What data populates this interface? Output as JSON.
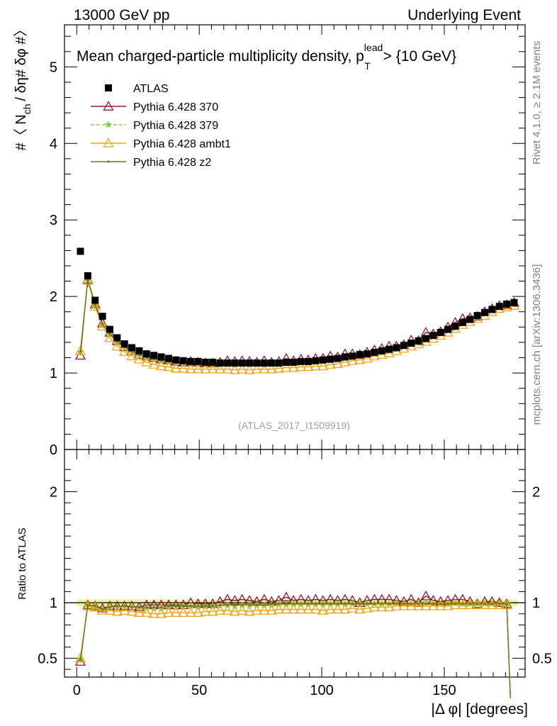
{
  "header": {
    "left": "13000 GeV pp",
    "right": "Underlying Event"
  },
  "side_labels": {
    "rivet": "Rivet 4.1.0, ≥ 2.1M events",
    "mcplots": "mcplots.cern.ch [arXiv:1306.3436]"
  },
  "watermark": "(ATLAS_2017_I1509919)",
  "chart_data": [
    {
      "type": "line",
      "title_main": "Mean charged-particle multiplicity density, p",
      "title_sup": "lead",
      "title_sub": "T",
      "title_tail": " > {10 GeV}",
      "ylabel_part1": "#〈 N",
      "ylabel_sub": "ch",
      "ylabel_part2": "/ δη# δφ #〉",
      "xlabel": "|Δ φ| [degrees]",
      "xlim": [
        -5,
        183
      ],
      "ylim": [
        0,
        5.55
      ],
      "yticks": [
        0,
        1,
        2,
        3,
        4,
        5
      ],
      "ytick_labels": [
        "0",
        "1",
        "2",
        "3",
        "4",
        "5"
      ],
      "xticks": [
        0,
        50,
        100,
        150
      ],
      "xtick_labels": [
        "0",
        "50",
        "100",
        "150"
      ],
      "legend": [
        "ATLAS",
        "Pythia 6.428 370",
        "Pythia 6.428 379",
        "Pythia 6.428 ambt1",
        "Pythia 6.428 z2"
      ],
      "x": [
        1.5,
        4.5,
        7.5,
        10.5,
        13.5,
        16.5,
        19.5,
        22.5,
        25.5,
        28.5,
        31.5,
        34.5,
        37.5,
        40.5,
        43.5,
        46.5,
        49.5,
        52.5,
        55.5,
        58.5,
        61.5,
        64.5,
        67.5,
        70.5,
        73.5,
        76.5,
        79.5,
        82.5,
        85.5,
        88.5,
        91.5,
        94.5,
        97.5,
        100.5,
        103.5,
        106.5,
        109.5,
        112.5,
        115.5,
        118.5,
        121.5,
        124.5,
        127.5,
        130.5,
        133.5,
        136.5,
        139.5,
        142.5,
        145.5,
        148.5,
        151.5,
        154.5,
        157.5,
        160.5,
        163.5,
        166.5,
        169.5,
        172.5,
        175.5,
        178.5
      ],
      "series": [
        {
          "name": "ATLAS",
          "color": "#000000",
          "marker": "square",
          "values": [
            2.59,
            2.27,
            1.95,
            1.74,
            1.57,
            1.46,
            1.38,
            1.33,
            1.29,
            1.25,
            1.23,
            1.21,
            1.19,
            1.17,
            1.16,
            1.15,
            1.15,
            1.14,
            1.14,
            1.13,
            1.13,
            1.13,
            1.13,
            1.13,
            1.13,
            1.13,
            1.13,
            1.13,
            1.14,
            1.14,
            1.15,
            1.15,
            1.16,
            1.17,
            1.18,
            1.19,
            1.21,
            1.22,
            1.24,
            1.25,
            1.27,
            1.29,
            1.31,
            1.33,
            1.36,
            1.39,
            1.42,
            1.45,
            1.49,
            1.53,
            1.57,
            1.61,
            1.66,
            1.7,
            1.75,
            1.79,
            1.83,
            1.87,
            1.9,
            1.92
          ]
        },
        {
          "name": "Pythia 6.428 370",
          "color": "#8b1a2e",
          "marker": "triangle-open",
          "values": [
            1.23,
            2.22,
            1.9,
            1.65,
            1.53,
            1.42,
            1.34,
            1.29,
            1.24,
            1.22,
            1.2,
            1.18,
            1.17,
            1.15,
            1.14,
            1.15,
            1.14,
            1.13,
            1.13,
            1.14,
            1.16,
            1.15,
            1.16,
            1.15,
            1.14,
            1.16,
            1.14,
            1.15,
            1.19,
            1.16,
            1.18,
            1.17,
            1.19,
            1.19,
            1.22,
            1.21,
            1.25,
            1.25,
            1.24,
            1.27,
            1.3,
            1.32,
            1.35,
            1.35,
            1.37,
            1.43,
            1.42,
            1.53,
            1.51,
            1.54,
            1.6,
            1.66,
            1.71,
            1.72,
            1.74,
            1.8,
            1.84,
            1.88,
            1.89,
            1.92
          ]
        },
        {
          "name": "Pythia 6.428 379",
          "color": "#8ec63f",
          "marker": "star",
          "values": [
            1.27,
            2.21,
            1.88,
            1.63,
            1.5,
            1.4,
            1.33,
            1.27,
            1.23,
            1.19,
            1.17,
            1.15,
            1.14,
            1.12,
            1.12,
            1.11,
            1.11,
            1.1,
            1.11,
            1.1,
            1.11,
            1.1,
            1.11,
            1.11,
            1.11,
            1.1,
            1.11,
            1.12,
            1.12,
            1.13,
            1.14,
            1.14,
            1.15,
            1.15,
            1.17,
            1.18,
            1.19,
            1.21,
            1.23,
            1.24,
            1.26,
            1.28,
            1.3,
            1.33,
            1.35,
            1.38,
            1.41,
            1.45,
            1.48,
            1.52,
            1.56,
            1.61,
            1.65,
            1.69,
            1.74,
            1.78,
            1.82,
            1.86,
            1.88,
            1.91
          ]
        },
        {
          "name": "Pythia 6.428 ambt1",
          "color": "#f0a61a",
          "marker": "triangle-open",
          "values": [
            1.29,
            2.21,
            1.87,
            1.61,
            1.46,
            1.35,
            1.28,
            1.22,
            1.18,
            1.14,
            1.11,
            1.09,
            1.08,
            1.06,
            1.06,
            1.05,
            1.05,
            1.05,
            1.05,
            1.05,
            1.05,
            1.04,
            1.05,
            1.04,
            1.05,
            1.05,
            1.05,
            1.06,
            1.07,
            1.07,
            1.08,
            1.08,
            1.09,
            1.09,
            1.11,
            1.12,
            1.14,
            1.16,
            1.17,
            1.19,
            1.22,
            1.24,
            1.26,
            1.29,
            1.32,
            1.35,
            1.38,
            1.41,
            1.45,
            1.49,
            1.53,
            1.58,
            1.63,
            1.67,
            1.71,
            1.75,
            1.8,
            1.84,
            1.86,
            1.88
          ]
        },
        {
          "name": "Pythia 6.428 z2",
          "color": "#6b7a12",
          "marker": "dot",
          "values": [
            1.28,
            2.22,
            1.89,
            1.64,
            1.51,
            1.41,
            1.34,
            1.28,
            1.24,
            1.2,
            1.18,
            1.16,
            1.15,
            1.13,
            1.13,
            1.12,
            1.12,
            1.11,
            1.11,
            1.11,
            1.11,
            1.11,
            1.11,
            1.11,
            1.11,
            1.11,
            1.12,
            1.12,
            1.13,
            1.13,
            1.14,
            1.14,
            1.15,
            1.16,
            1.17,
            1.18,
            1.2,
            1.21,
            1.23,
            1.24,
            1.26,
            1.28,
            1.3,
            1.32,
            1.35,
            1.38,
            1.41,
            1.44,
            1.48,
            1.52,
            1.56,
            1.6,
            1.64,
            1.69,
            1.73,
            1.78,
            1.82,
            1.85,
            1.88,
            1.9
          ]
        }
      ]
    },
    {
      "type": "line",
      "ylabel": "Ratio to ATLAS",
      "xlim": [
        -5,
        183
      ],
      "ylim": [
        0.33,
        2.38
      ],
      "yticks": [
        0.5,
        1,
        2
      ],
      "ytick_labels": [
        "0.5",
        "1",
        "2"
      ],
      "reference_value": 1,
      "x": [
        1.5,
        4.5,
        7.5,
        10.5,
        13.5,
        16.5,
        19.5,
        22.5,
        25.5,
        28.5,
        31.5,
        34.5,
        37.5,
        40.5,
        43.5,
        46.5,
        49.5,
        52.5,
        55.5,
        58.5,
        61.5,
        64.5,
        67.5,
        70.5,
        73.5,
        76.5,
        79.5,
        82.5,
        85.5,
        88.5,
        91.5,
        94.5,
        97.5,
        100.5,
        103.5,
        106.5,
        109.5,
        112.5,
        115.5,
        118.5,
        121.5,
        124.5,
        127.5,
        130.5,
        133.5,
        136.5,
        139.5,
        142.5,
        145.5,
        148.5,
        151.5,
        154.5,
        157.5,
        160.5,
        163.5,
        166.5,
        169.5,
        172.5,
        175.5
      ],
      "series": [
        {
          "name": "Pythia 6.428 370",
          "color": "#8b1a2e",
          "values": [
            0.47,
            0.98,
            0.97,
            0.95,
            0.97,
            0.97,
            0.97,
            0.97,
            0.96,
            0.98,
            0.98,
            0.98,
            0.98,
            0.98,
            0.98,
            1.0,
            0.99,
            0.99,
            0.99,
            1.01,
            1.03,
            1.02,
            1.03,
            1.02,
            1.01,
            1.03,
            1.01,
            1.02,
            1.05,
            1.02,
            1.03,
            1.02,
            1.03,
            1.02,
            1.03,
            1.02,
            1.03,
            1.02,
            1.0,
            1.02,
            1.03,
            1.03,
            1.03,
            1.02,
            1.01,
            1.03,
            1.0,
            1.06,
            1.02,
            1.01,
            1.02,
            1.03,
            1.03,
            1.01,
            0.99,
            1.01,
            1.01,
            1.0,
            0.99
          ]
        },
        {
          "name": "Pythia 6.428 379",
          "color": "#8ec63f",
          "values": [
            0.49,
            0.97,
            0.96,
            0.94,
            0.96,
            0.96,
            0.96,
            0.96,
            0.95,
            0.95,
            0.95,
            0.95,
            0.96,
            0.96,
            0.97,
            0.97,
            0.96,
            0.97,
            0.97,
            0.97,
            0.98,
            0.97,
            0.98,
            0.98,
            0.98,
            0.98,
            0.98,
            0.99,
            0.98,
            0.99,
            0.99,
            0.99,
            0.99,
            0.99,
            0.99,
            0.99,
            0.99,
            0.99,
            0.99,
            0.99,
            0.99,
            0.99,
            0.99,
            1.0,
            0.99,
            0.99,
            0.99,
            1.0,
            0.99,
            0.99,
            0.99,
            1.0,
            0.99,
            0.99,
            0.99,
            0.99,
            0.99,
            0.99,
            0.99
          ]
        },
        {
          "name": "Pythia 6.428 ambt1",
          "color": "#f0a61a",
          "values": [
            0.5,
            0.97,
            0.96,
            0.93,
            0.93,
            0.92,
            0.93,
            0.92,
            0.91,
            0.91,
            0.9,
            0.9,
            0.91,
            0.91,
            0.91,
            0.91,
            0.91,
            0.92,
            0.92,
            0.93,
            0.93,
            0.92,
            0.93,
            0.92,
            0.93,
            0.93,
            0.93,
            0.94,
            0.94,
            0.94,
            0.94,
            0.94,
            0.94,
            0.93,
            0.94,
            0.94,
            0.94,
            0.95,
            0.94,
            0.95,
            0.96,
            0.96,
            0.96,
            0.97,
            0.97,
            0.97,
            0.97,
            0.97,
            0.97,
            0.97,
            0.97,
            0.98,
            0.98,
            0.98,
            0.98,
            0.98,
            0.98,
            0.98,
            0.98
          ]
        },
        {
          "name": "Pythia 6.428 z2",
          "color": "#6b7a12",
          "values": [
            0.49,
            0.98,
            0.97,
            0.94,
            0.96,
            0.97,
            0.97,
            0.96,
            0.96,
            0.96,
            0.96,
            0.96,
            0.97,
            0.97,
            0.97,
            0.97,
            0.97,
            0.97,
            0.97,
            0.98,
            0.98,
            0.98,
            0.98,
            0.98,
            0.98,
            0.98,
            0.99,
            0.99,
            0.99,
            0.99,
            0.99,
            0.99,
            0.99,
            0.99,
            0.99,
            0.99,
            0.99,
            0.99,
            0.99,
            0.99,
            0.99,
            0.99,
            0.99,
            0.99,
            0.99,
            0.99,
            0.99,
            0.99,
            0.99,
            0.99,
            0.99,
            0.99,
            0.99,
            0.99,
            0.99,
            0.99,
            0.99,
            0.99,
            0.99
          ]
        }
      ]
    }
  ]
}
